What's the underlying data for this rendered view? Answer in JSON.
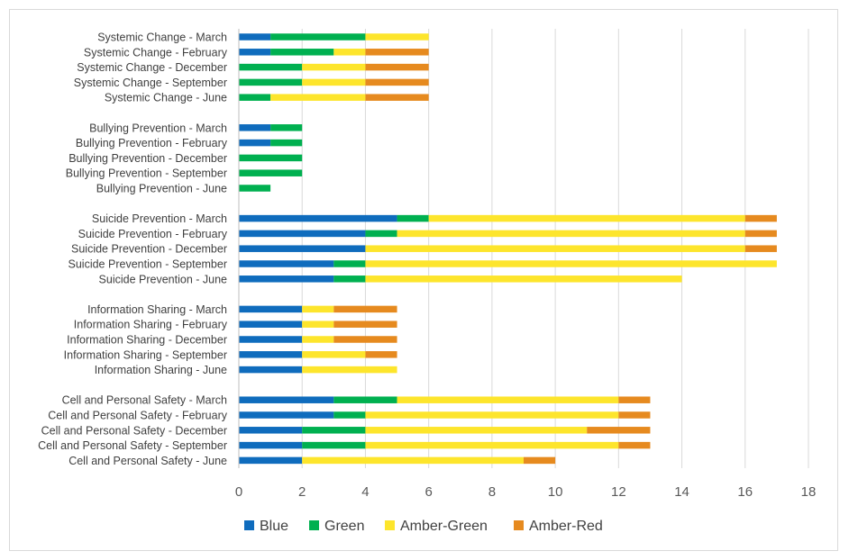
{
  "chart_data": {
    "type": "bar",
    "orientation": "horizontal",
    "stacked": true,
    "title": "",
    "xlabel": "",
    "ylabel": "",
    "xlim": [
      0,
      18
    ],
    "x_ticks": [
      0,
      2,
      4,
      6,
      8,
      10,
      12,
      14,
      16,
      18
    ],
    "grid": "vertical",
    "legend_position": "bottom",
    "categories": [
      "Systemic Change - March",
      "Systemic Change - February",
      "Systemic Change - December",
      "Systemic Change - September",
      "Systemic Change - June",
      "",
      "Bullying Prevention - March",
      "Bullying Prevention - February",
      "Bullying Prevention - December",
      "Bullying Prevention - September",
      "Bullying Prevention - June",
      "",
      "Suicide Prevention - March",
      "Suicide Prevention - February",
      "Suicide Prevention - December",
      "Suicide Prevention - September",
      "Suicide Prevention - June",
      "",
      "Information Sharing - March",
      "Information Sharing - February",
      "Information Sharing - December",
      "Information Sharing - September",
      "Information Sharing - June",
      "",
      "Cell and Personal Safety - March",
      "Cell and Personal Safety - February",
      "Cell and Personal Safety - December",
      "Cell and Personal Safety - September",
      "Cell and Personal Safety - June"
    ],
    "series": [
      {
        "name": "Blue",
        "color": "#0f6cbd",
        "values": [
          1,
          1,
          0,
          0,
          0,
          0,
          1,
          1,
          0,
          0,
          0,
          0,
          5,
          4,
          4,
          3,
          3,
          0,
          2,
          2,
          2,
          2,
          2,
          0,
          3,
          3,
          2,
          2,
          2
        ]
      },
      {
        "name": "Green",
        "color": "#00b050",
        "values": [
          3,
          2,
          2,
          2,
          1,
          0,
          1,
          1,
          2,
          2,
          1,
          0,
          1,
          1,
          0,
          1,
          1,
          0,
          0,
          0,
          0,
          0,
          0,
          0,
          2,
          1,
          2,
          2,
          0
        ]
      },
      {
        "name": "Amber-Green",
        "color": "#fde52c",
        "values": [
          2,
          1,
          2,
          2,
          3,
          0,
          0,
          0,
          0,
          0,
          0,
          0,
          10,
          11,
          12,
          13,
          10,
          0,
          1,
          1,
          1,
          2,
          3,
          0,
          7,
          8,
          7,
          8,
          7
        ]
      },
      {
        "name": "Amber-Red",
        "color": "#e68a1f",
        "values": [
          0,
          2,
          2,
          2,
          2,
          0,
          0,
          0,
          0,
          0,
          0,
          0,
          1,
          1,
          1,
          0,
          0,
          0,
          2,
          2,
          2,
          1,
          0,
          0,
          1,
          1,
          2,
          1,
          1
        ]
      }
    ]
  }
}
